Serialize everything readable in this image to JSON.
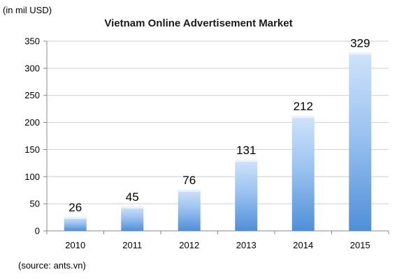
{
  "unit_note": "(in mil USD)",
  "source_note": "(source: ants.vn)",
  "chart_data": {
    "type": "bar",
    "title": "Vietnam Online Advertisement Market",
    "xlabel": "",
    "ylabel": "",
    "categories": [
      "2010",
      "2011",
      "2012",
      "2013",
      "2014",
      "2015"
    ],
    "values": [
      26,
      45,
      76,
      131,
      212,
      329
    ],
    "data_labels": [
      "26",
      "45",
      "76",
      "131",
      "212",
      "329"
    ],
    "ylim": [
      0,
      350
    ],
    "yticks": [
      0,
      50,
      100,
      150,
      200,
      250,
      300,
      350
    ],
    "grid": "horizontal",
    "legend": "none",
    "colors": {
      "bar_light": "#cfe3fb",
      "bar_mid": "#9cc3f1",
      "bar_dark": "#4f8fd8",
      "bar_top": "#e9f3ff",
      "axis": "#888888",
      "grid": "#cfcfcf"
    }
  }
}
